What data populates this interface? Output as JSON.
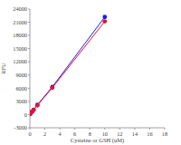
{
  "chart_data": {
    "type": "scatter",
    "x_label": "Cysteine or GSH (uM)",
    "y_label": "RFU",
    "x": [
      0,
      0.1,
      0.3,
      0.5,
      1,
      3,
      10
    ],
    "series": [
      {
        "color": "#1a1aff",
        "marker": "circle",
        "line_style": "solid",
        "values": [
          100,
          300,
          700,
          1100,
          2200,
          6300,
          22200
        ]
      },
      {
        "color": "#e8102c",
        "marker": "circle",
        "line_style": "solid",
        "values": [
          100,
          280,
          650,
          1050,
          2100,
          6100,
          21200
        ]
      }
    ],
    "xlim": [
      0,
      18
    ],
    "xticks": [
      0,
      2,
      4,
      6,
      8,
      10,
      12,
      14,
      16,
      18
    ],
    "ylim": [
      -3000,
      24000
    ],
    "yticks": [
      -3000,
      0,
      3000,
      6000,
      9000,
      12000,
      15000,
      18000,
      21000,
      24000
    ],
    "grid": false
  }
}
